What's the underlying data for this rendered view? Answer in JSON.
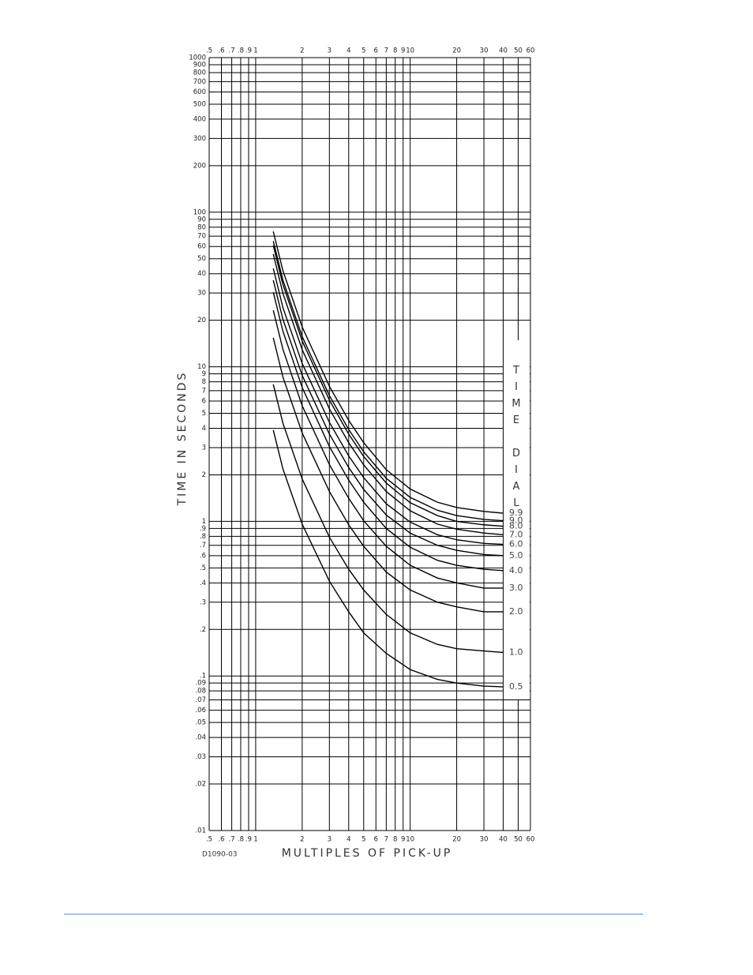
{
  "chart_data": {
    "type": "line",
    "x_scale": "log",
    "y_scale": "log",
    "grid": true,
    "xlabel": "MULTIPLES OF PICK-UP",
    "ylabel": "TIME IN SECONDS",
    "legend_title": "TIME DIAL",
    "note": "D1090-03",
    "xlim": [
      0.5,
      60
    ],
    "ylim": [
      0.01,
      1000
    ],
    "xticks": [
      {
        "value": 0.5,
        "label": ".5"
      },
      {
        "value": 0.6,
        "label": ".6"
      },
      {
        "value": 0.7,
        "label": ".7"
      },
      {
        "value": 0.8,
        "label": ".8"
      },
      {
        "value": 0.9,
        "label": ".9"
      },
      1,
      2,
      3,
      4,
      5,
      6,
      7,
      8,
      9,
      10,
      20,
      30,
      40,
      50,
      60
    ],
    "yticks": [
      1000,
      900,
      800,
      700,
      600,
      500,
      400,
      300,
      200,
      100,
      90,
      80,
      70,
      60,
      50,
      40,
      30,
      20,
      10,
      9,
      8,
      7,
      6,
      5,
      4,
      3,
      2,
      1,
      {
        "value": 0.9,
        "label": ".9"
      },
      {
        "value": 0.8,
        "label": ".8"
      },
      {
        "value": 0.7,
        "label": ".7"
      },
      {
        "value": 0.6,
        "label": ".6"
      },
      {
        "value": 0.5,
        "label": ".5"
      },
      {
        "value": 0.4,
        "label": ".4"
      },
      {
        "value": 0.3,
        "label": ".3"
      },
      {
        "value": 0.2,
        "label": ".2"
      },
      {
        "value": 0.1,
        "label": ".1"
      },
      {
        "value": 0.09,
        "label": ".09"
      },
      {
        "value": 0.08,
        "label": ".08"
      },
      {
        "value": 0.07,
        "label": ".07"
      },
      {
        "value": 0.06,
        "label": ".06"
      },
      {
        "value": 0.05,
        "label": ".05"
      },
      {
        "value": 0.04,
        "label": ".04"
      },
      {
        "value": 0.03,
        "label": ".03"
      },
      {
        "value": 0.02,
        "label": ".02"
      },
      {
        "value": 0.01,
        "label": ".01"
      }
    ],
    "x": [
      1.3,
      1.5,
      2,
      3,
      4,
      5,
      7,
      10,
      15,
      20,
      30,
      40
    ],
    "series": [
      {
        "name": "9.9",
        "color": "#000000",
        "values": [
          75,
          41.9,
          18.1,
          7.48,
          4.5,
          3.23,
          2.16,
          1.62,
          1.33,
          1.23,
          1.16,
          1.13
        ]
      },
      {
        "name": "9.0",
        "color": "#000000",
        "values": [
          65,
          36.4,
          15.7,
          6.51,
          3.93,
          2.82,
          1.9,
          1.43,
          1.18,
          1.09,
          1.03,
          1.01
        ]
      },
      {
        "name": "8.0",
        "color": "#000000",
        "values": [
          61,
          34.1,
          14.7,
          6.09,
          3.67,
          2.63,
          1.77,
          1.32,
          1.09,
          1.0,
          0.95,
          0.93
        ]
      },
      {
        "name": "7.0",
        "color": "#000000",
        "values": [
          53.6,
          29.9,
          12.9,
          5.35,
          3.23,
          2.32,
          1.56,
          1.17,
          0.96,
          0.89,
          0.84,
          0.82
        ]
      },
      {
        "name": "6.0",
        "color": "#000000",
        "values": [
          43.3,
          24.2,
          10.5,
          4.37,
          2.65,
          1.92,
          1.3,
          0.99,
          0.82,
          0.76,
          0.72,
          0.71
        ]
      },
      {
        "name": "5.0",
        "color": "#000000",
        "values": [
          36.3,
          20.3,
          8.8,
          3.67,
          2.23,
          1.61,
          1.1,
          0.84,
          0.7,
          0.65,
          0.61,
          0.6
        ]
      },
      {
        "name": "4.0",
        "color": "#000000",
        "values": [
          30.4,
          17.0,
          7.35,
          3.05,
          1.85,
          1.33,
          0.9,
          0.68,
          0.56,
          0.52,
          0.49,
          0.48
        ]
      },
      {
        "name": "3.0",
        "color": "#000000",
        "values": [
          23.2,
          13.0,
          5.6,
          2.33,
          1.41,
          1.01,
          0.69,
          0.52,
          0.43,
          0.4,
          0.37,
          0.37
        ]
      },
      {
        "name": "2.0",
        "color": "#000000",
        "values": [
          15.4,
          8.6,
          3.73,
          1.56,
          0.95,
          0.69,
          0.47,
          0.36,
          0.3,
          0.28,
          0.26,
          0.26
        ]
      },
      {
        "name": "1.0",
        "color": "#000000",
        "values": [
          7.7,
          4.32,
          1.88,
          0.79,
          0.49,
          0.36,
          0.25,
          0.19,
          0.16,
          0.15,
          0.145,
          0.142
        ]
      },
      {
        "name": "0.5",
        "color": "#000000",
        "values": [
          3.9,
          2.19,
          0.96,
          0.41,
          0.26,
          0.19,
          0.14,
          0.11,
          0.095,
          0.09,
          0.086,
          0.085
        ]
      }
    ]
  }
}
